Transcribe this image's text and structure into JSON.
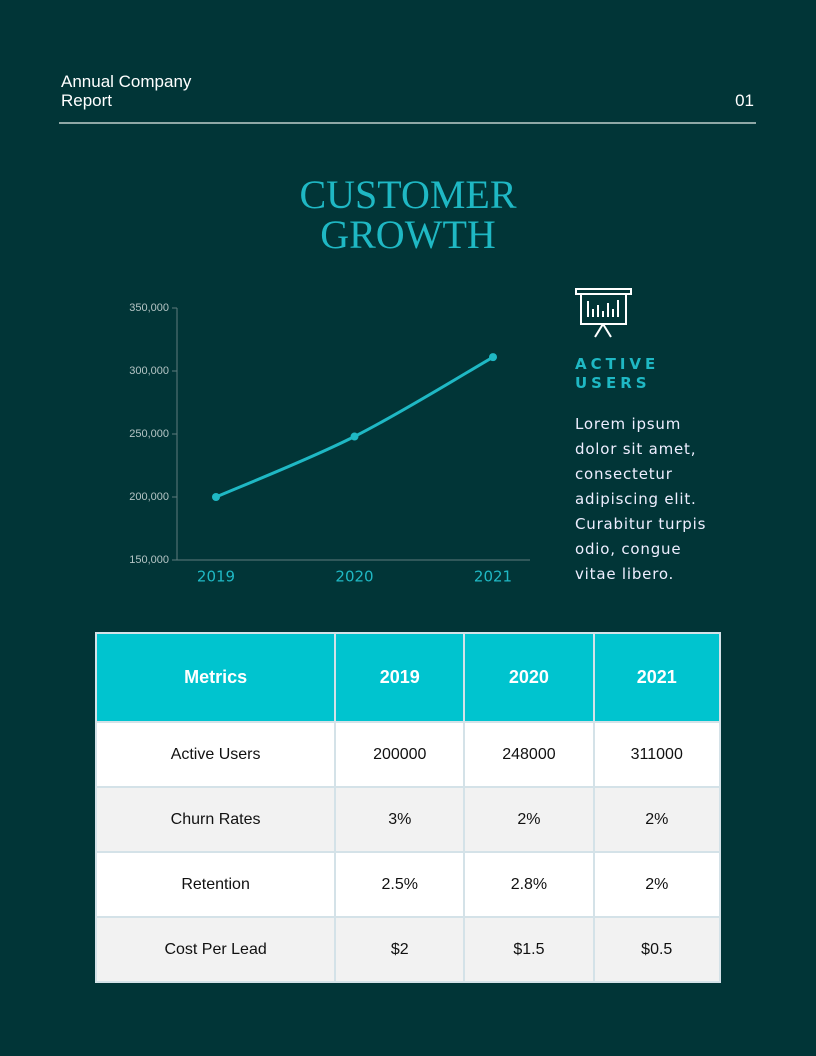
{
  "header": {
    "title": "Annual Company Report",
    "page": "01"
  },
  "heading": "CUSTOMER GROWTH",
  "chart_data": {
    "type": "line",
    "categories": [
      "2019",
      "2020",
      "2021"
    ],
    "values": [
      200000,
      248000,
      311000
    ],
    "color": "#1fb8c4",
    "ylim": [
      150000,
      350000
    ],
    "yticks": [
      {
        "value": 150000,
        "label": "150,000"
      },
      {
        "value": 200000,
        "label": "200,000"
      },
      {
        "value": 250000,
        "label": "250,000"
      },
      {
        "value": 300000,
        "label": "300,000"
      },
      {
        "value": 350000,
        "label": "350,000"
      }
    ]
  },
  "aside": {
    "title": "ACTIVE USERS",
    "text": "Lorem ipsum dolor sit amet, consectetur adipiscing elit. Curabitur turpis odio, congue vitae libero."
  },
  "table": {
    "header": [
      "Metrics",
      "2019",
      "2020",
      "2021"
    ],
    "rows": [
      [
        "Active Users",
        "200000",
        "248000",
        "311000"
      ],
      [
        "Churn Rates",
        "3%",
        "2%",
        "2%"
      ],
      [
        "Retention",
        "2.5%",
        "2.8%",
        "2%"
      ],
      [
        "Cost Per Lead",
        "$2",
        "$1.5",
        "$0.5"
      ]
    ]
  }
}
